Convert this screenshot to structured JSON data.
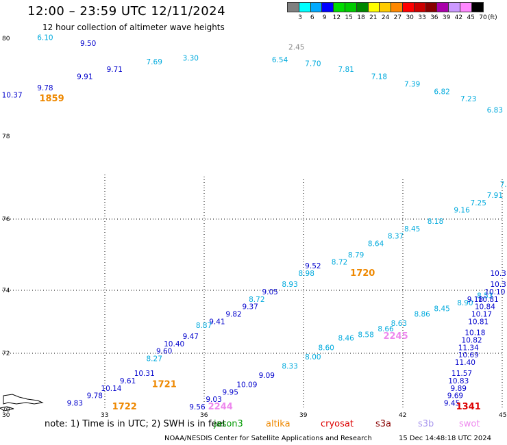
{
  "title": "12:00 – 23:59 UTC 12/11/2024",
  "subtitle": "12 hour collection of altimeter wave heights",
  "colorbar": {
    "colors": [
      "#808080",
      "#00ffff",
      "#00aaff",
      "#0000ff",
      "#00dd00",
      "#00cc00",
      "#008800",
      "#ffff00",
      "#ffcc00",
      "#ff8800",
      "#ff0000",
      "#cc0000",
      "#880000",
      "#aa00aa",
      "#cc99ff",
      "#ff88ff",
      "#000000"
    ],
    "labels": [
      "3",
      "6",
      "9",
      "12",
      "15",
      "18",
      "21",
      "24",
      "27",
      "30",
      "33",
      "36",
      "39",
      "42",
      "45",
      "70",
      "(ft)"
    ]
  },
  "axes": {
    "lat_labels": [
      "80",
      "78",
      "76",
      "74",
      "72",
      "70"
    ],
    "lon_labels": [
      "30",
      "33",
      "36",
      "39",
      "42",
      "45"
    ]
  },
  "passes": [
    {
      "name": "jason3",
      "color": "#0000cc",
      "points": [
        {
          "lon": 30.2,
          "lat": 78.4,
          "v": "10.37"
        },
        {
          "lon": 31.2,
          "lat": 78.6,
          "v": "9.78"
        },
        {
          "lon": 32.4,
          "lat": 78.9,
          "v": "9.91"
        },
        {
          "lon": 33.3,
          "lat": 79.1,
          "v": "9.71"
        },
        {
          "lon": 32.5,
          "lat": 79.8,
          "v": "9.50"
        }
      ]
    },
    {
      "name": "altika-north",
      "color": "#00aadd",
      "points": [
        {
          "lon": 31.2,
          "lat": 79.95,
          "v": "6.10"
        },
        {
          "lon": 34.5,
          "lat": 79.3,
          "v": "7.69"
        },
        {
          "lon": 35.6,
          "lat": 79.4,
          "v": "3.30"
        },
        {
          "lon": 38.3,
          "lat": 79.35,
          "v": "6.54"
        },
        {
          "lon": 39.3,
          "lat": 79.25,
          "v": "7.70"
        },
        {
          "lon": 40.3,
          "lat": 79.1,
          "v": "7.81"
        },
        {
          "lon": 41.3,
          "lat": 78.9,
          "v": "7.18"
        },
        {
          "lon": 42.3,
          "lat": 78.7,
          "v": "7.39"
        },
        {
          "lon": 43.2,
          "lat": 78.5,
          "v": "6.82"
        },
        {
          "lon": 44.0,
          "lat": 78.3,
          "v": "7.23"
        },
        {
          "lon": 44.8,
          "lat": 78.0,
          "v": "6.83"
        }
      ]
    },
    {
      "name": "gray",
      "color": "#888888",
      "points": [
        {
          "lon": 38.8,
          "lat": 79.7,
          "v": "2.45"
        }
      ]
    },
    {
      "name": "track-1721-1720",
      "color": "#0000cc",
      "points": [
        {
          "lon": 32.1,
          "lat": 70.1,
          "v": "9.83"
        },
        {
          "lon": 32.7,
          "lat": 70.3,
          "v": "9.78"
        },
        {
          "lon": 33.2,
          "lat": 70.5,
          "v": "10.14"
        },
        {
          "lon": 33.7,
          "lat": 70.7,
          "v": "9.61"
        },
        {
          "lon": 34.2,
          "lat": 70.9,
          "v": "10.31"
        },
        {
          "lon": 34.8,
          "lat": 71.5,
          "v": "9.60"
        },
        {
          "lon": 35.1,
          "lat": 71.7,
          "v": "10.40"
        },
        {
          "lon": 35.6,
          "lat": 71.9,
          "v": "9.47"
        },
        {
          "lon": 36.4,
          "lat": 72.3,
          "v": "9.41"
        },
        {
          "lon": 36.9,
          "lat": 72.5,
          "v": "9.82"
        },
        {
          "lon": 37.4,
          "lat": 72.7,
          "v": "9.37"
        },
        {
          "lon": 38.0,
          "lat": 73.1,
          "v": "9.05"
        },
        {
          "lon": 39.3,
          "lat": 73.8,
          "v": "9.52"
        }
      ]
    },
    {
      "name": "track-1721-1720-cyan",
      "color": "#00aadd",
      "points": [
        {
          "lon": 34.5,
          "lat": 71.3,
          "v": "8.27"
        },
        {
          "lon": 36.0,
          "lat": 72.2,
          "v": "8.87"
        },
        {
          "lon": 37.6,
          "lat": 72.9,
          "v": "8.72"
        },
        {
          "lon": 38.6,
          "lat": 73.3,
          "v": "8.93"
        },
        {
          "lon": 39.1,
          "lat": 73.6,
          "v": "8.98"
        },
        {
          "lon": 40.1,
          "lat": 73.9,
          "v": "8.72"
        },
        {
          "lon": 40.6,
          "lat": 74.1,
          "v": "8.79"
        },
        {
          "lon": 41.2,
          "lat": 74.4,
          "v": "8.64"
        },
        {
          "lon": 41.8,
          "lat": 74.6,
          "v": "8.37"
        },
        {
          "lon": 42.3,
          "lat": 74.8,
          "v": "8.45"
        },
        {
          "lon": 43.0,
          "lat": 75.0,
          "v": "8.18"
        },
        {
          "lon": 43.8,
          "lat": 75.3,
          "v": "9.16"
        },
        {
          "lon": 44.3,
          "lat": 75.5,
          "v": "7.25"
        },
        {
          "lon": 44.8,
          "lat": 75.7,
          "v": "7.91"
        },
        {
          "lon": 45.3,
          "lat": 76.0,
          "v": "7.6"
        }
      ]
    },
    {
      "name": "track-2244-2245",
      "color": "#00aadd",
      "points": [
        {
          "lon": 38.6,
          "lat": 71.1,
          "v": "8.33"
        },
        {
          "lon": 39.3,
          "lat": 71.35,
          "v": "8.00"
        },
        {
          "lon": 39.7,
          "lat": 71.6,
          "v": "8.60"
        },
        {
          "lon": 40.3,
          "lat": 71.85,
          "v": "8.46"
        },
        {
          "lon": 40.9,
          "lat": 71.95,
          "v": "8.58"
        },
        {
          "lon": 41.5,
          "lat": 72.1,
          "v": "8.66"
        },
        {
          "lon": 41.9,
          "lat": 72.25,
          "v": "8.63"
        },
        {
          "lon": 42.6,
          "lat": 72.5,
          "v": "8.86"
        },
        {
          "lon": 43.2,
          "lat": 72.65,
          "v": "8.45"
        },
        {
          "lon": 43.9,
          "lat": 72.8,
          "v": "8.90"
        },
        {
          "lon": 44.5,
          "lat": 73.0,
          "v": "8.53"
        }
      ]
    },
    {
      "name": "track-2244-blue",
      "color": "#0000cc",
      "points": [
        {
          "lon": 35.8,
          "lat": 70.0,
          "v": "9.56"
        },
        {
          "lon": 36.3,
          "lat": 70.2,
          "v": "9.03"
        },
        {
          "lon": 36.8,
          "lat": 70.4,
          "v": "9.95"
        },
        {
          "lon": 37.3,
          "lat": 70.6,
          "v": "10.09"
        },
        {
          "lon": 37.9,
          "lat": 70.85,
          "v": "9.09"
        }
      ]
    },
    {
      "name": "track-1341",
      "color": "#0000cc",
      "points": [
        {
          "lon": 43.5,
          "lat": 70.1,
          "v": "9.45"
        },
        {
          "lon": 43.6,
          "lat": 70.3,
          "v": "9.69"
        },
        {
          "lon": 43.7,
          "lat": 70.5,
          "v": "9.89"
        },
        {
          "lon": 43.7,
          "lat": 70.7,
          "v": "10.83"
        },
        {
          "lon": 43.8,
          "lat": 70.9,
          "v": "11.57"
        },
        {
          "lon": 43.9,
          "lat": 71.2,
          "v": "11.40"
        },
        {
          "lon": 44.0,
          "lat": 71.4,
          "v": "10.69"
        },
        {
          "lon": 44.0,
          "lat": 71.6,
          "v": "11.34"
        },
        {
          "lon": 44.1,
          "lat": 71.8,
          "v": "10.82"
        },
        {
          "lon": 44.2,
          "lat": 72.0,
          "v": "10.18"
        },
        {
          "lon": 44.3,
          "lat": 72.3,
          "v": "10.81"
        },
        {
          "lon": 44.4,
          "lat": 72.5,
          "v": "10.17"
        },
        {
          "lon": 44.5,
          "lat": 72.7,
          "v": "10.84"
        },
        {
          "lon": 44.6,
          "lat": 72.9,
          "v": "10.81"
        },
        {
          "lon": 44.8,
          "lat": 73.1,
          "v": "10.10"
        },
        {
          "lon": 44.9,
          "lat": 73.3,
          "v": "10.3"
        },
        {
          "lon": 44.9,
          "lat": 73.6,
          "v": "10.3"
        },
        {
          "lon": 44.2,
          "lat": 72.9,
          "v": "9.18"
        }
      ]
    }
  ],
  "times": [
    {
      "lon": 31.4,
      "lat": 78.3,
      "v": "1859",
      "color": "#ee8800"
    },
    {
      "lon": 33.6,
      "lat": 70.0,
      "v": "1722",
      "color": "#ee8800"
    },
    {
      "lon": 34.8,
      "lat": 70.6,
      "v": "1721",
      "color": "#ee8800"
    },
    {
      "lon": 40.8,
      "lat": 73.6,
      "v": "1720",
      "color": "#ee8800"
    },
    {
      "lon": 36.5,
      "lat": 70.0,
      "v": "2244",
      "color": "#ee88ee"
    },
    {
      "lon": 41.8,
      "lat": 71.9,
      "v": "2245",
      "color": "#ee88ee"
    },
    {
      "lon": 44.0,
      "lat": 70.0,
      "v": "1341",
      "color": "#dd0000"
    }
  ],
  "note": "note: 1) Time is in UTC; 2) SWH is in feet",
  "legend": [
    {
      "label": "jason3",
      "color": "#009900"
    },
    {
      "label": "altika",
      "color": "#ee8800"
    },
    {
      "label": "cryosat",
      "color": "#dd0000"
    },
    {
      "label": "s3a",
      "color": "#880000"
    },
    {
      "label": "s3b",
      "color": "#aa99ee"
    },
    {
      "label": "swot",
      "color": "#ee88ee"
    }
  ],
  "credit": "NOAA/NESDIS Center for Satellite Applications and Research",
  "credit_time": "15 Dec 14:48:18 UTC 2024"
}
